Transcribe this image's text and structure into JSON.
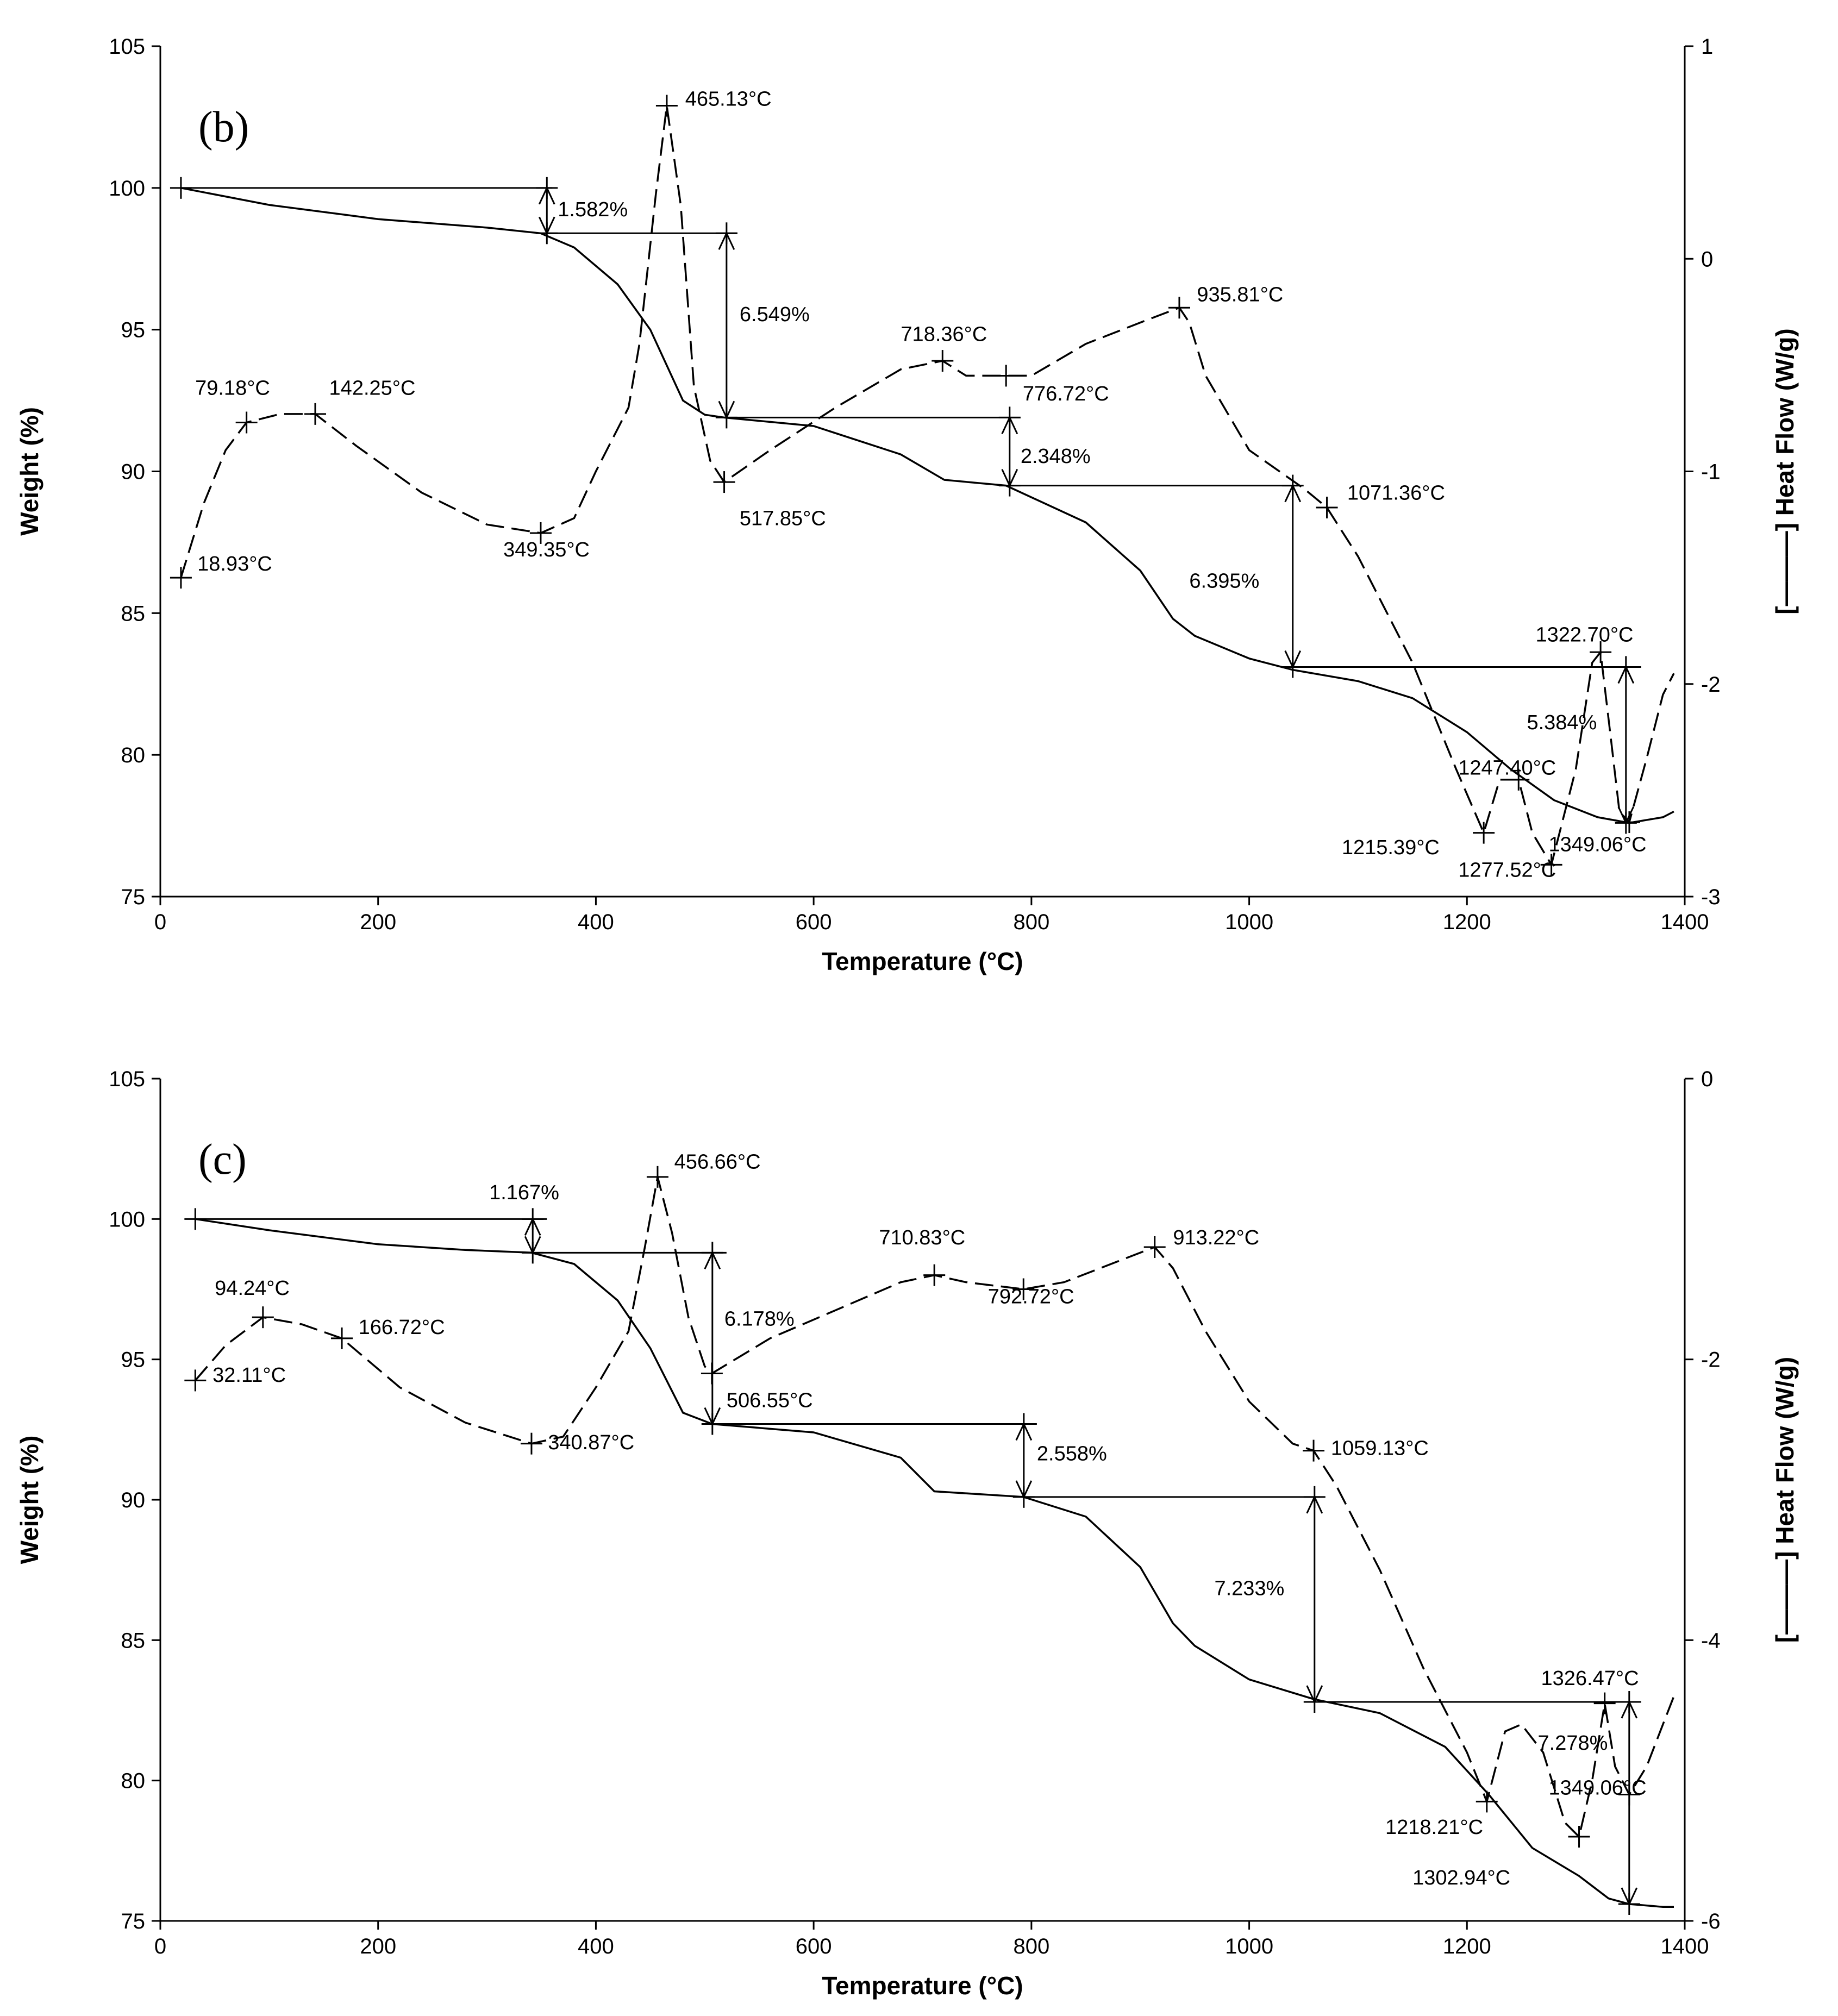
{
  "chart_data": [
    {
      "type": "line",
      "panel_label": "(b)",
      "xlabel": "Temperature (°C)",
      "ylabel": "Weight (%)",
      "y2label": "[———] Heat Flow (W/g)",
      "xlim": [
        0,
        1400
      ],
      "ylim": [
        75,
        105
      ],
      "y2lim": [
        -3,
        1
      ],
      "xticks": [
        0,
        200,
        400,
        600,
        800,
        1000,
        1200,
        1400
      ],
      "yticks": [
        75,
        80,
        85,
        90,
        95,
        100,
        105
      ],
      "y2ticks": [
        -3,
        -2,
        -1,
        0,
        1
      ],
      "series": [
        {
          "axis": "left",
          "style": "solid",
          "x": [
            18.93,
            100,
            200,
            300,
            349.35,
            380,
            420,
            450,
            480,
            500,
            517.85,
            600,
            680,
            720,
            776.72,
            850,
            900,
            930,
            950,
            1000,
            1040,
            1100,
            1150,
            1200,
            1240,
            1280,
            1320,
            1349.06,
            1380,
            1390
          ],
          "y": [
            100,
            99.4,
            98.9,
            98.6,
            98.4,
            97.9,
            96.6,
            95.0,
            92.5,
            92.0,
            91.9,
            91.6,
            90.6,
            89.7,
            89.5,
            88.2,
            86.5,
            84.8,
            84.2,
            83.4,
            83.0,
            82.6,
            82.0,
            80.8,
            79.5,
            78.4,
            77.8,
            77.6,
            77.8,
            78.0
          ]
        },
        {
          "axis": "right",
          "style": "dashed",
          "x": [
            18.93,
            40,
            60,
            79.18,
            110,
            142.25,
            180,
            240,
            300,
            349.35,
            380,
            400,
            430,
            440,
            455,
            465.13,
            478,
            490,
            505,
            517.85,
            560,
            620,
            680,
            718.36,
            740,
            776.72,
            800,
            850,
            900,
            935.81,
            945,
            960,
            1000,
            1050,
            1071.36,
            1100,
            1150,
            1190,
            1215.39,
            1230,
            1247.4,
            1260,
            1277.52,
            1300,
            1315,
            1322.7,
            1332,
            1340,
            1349.06,
            1365,
            1380,
            1390
          ],
          "y": [
            -1.5,
            -1.15,
            -0.9,
            -0.77,
            -0.73,
            -0.73,
            -0.88,
            -1.1,
            -1.25,
            -1.29,
            -1.22,
            -1.0,
            -0.7,
            -0.4,
            0.3,
            0.72,
            0.25,
            -0.6,
            -0.95,
            -1.05,
            -0.9,
            -0.7,
            -0.52,
            -0.48,
            -0.55,
            -0.55,
            -0.55,
            -0.4,
            -0.3,
            -0.23,
            -0.3,
            -0.55,
            -0.9,
            -1.08,
            -1.17,
            -1.4,
            -1.9,
            -2.4,
            -2.7,
            -2.45,
            -2.45,
            -2.7,
            -2.85,
            -2.4,
            -1.9,
            -1.85,
            -2.25,
            -2.6,
            -2.65,
            -2.35,
            -2.05,
            -1.95
          ]
        }
      ],
      "step_lines": [
        {
          "x1": 18.93,
          "x2": 360,
          "y": 100.0
        },
        {
          "x1": 349.35,
          "x2": 530,
          "y": 98.4
        },
        {
          "x1": 517.85,
          "x2": 790,
          "y": 91.9
        },
        {
          "x1": 776.72,
          "x2": 1045,
          "y": 89.5
        },
        {
          "x1": 1040,
          "x2": 1360,
          "y": 83.1
        }
      ],
      "arrows": [
        {
          "x": 355,
          "y1": 100.0,
          "y2": 98.4
        },
        {
          "x": 520,
          "y1": 98.4,
          "y2": 91.9
        },
        {
          "x": 780,
          "y1": 91.9,
          "y2": 89.5
        },
        {
          "x": 1040,
          "y1": 89.5,
          "y2": 83.1
        },
        {
          "x": 1346,
          "y1": 83.1,
          "y2": 77.6
        }
      ],
      "markers": [
        {
          "x": 18.93,
          "axis": "right",
          "v": -1.5
        },
        {
          "x": 79.18,
          "axis": "right",
          "v": -0.77
        },
        {
          "x": 142.25,
          "axis": "right",
          "v": -0.73
        },
        {
          "x": 349.35,
          "axis": "right",
          "v": -1.29
        },
        {
          "x": 465.13,
          "axis": "right",
          "v": 0.72
        },
        {
          "x": 517.85,
          "axis": "right",
          "v": -1.05
        },
        {
          "x": 718.36,
          "axis": "right",
          "v": -0.48
        },
        {
          "x": 776.72,
          "axis": "right",
          "v": -0.55
        },
        {
          "x": 935.81,
          "axis": "right",
          "v": -0.23
        },
        {
          "x": 1071.36,
          "axis": "right",
          "v": -1.17
        },
        {
          "x": 1215.39,
          "axis": "right",
          "v": -2.7
        },
        {
          "x": 1247.4,
          "axis": "right",
          "v": -2.45
        },
        {
          "x": 1277.52,
          "axis": "right",
          "v": -2.85
        },
        {
          "x": 1322.7,
          "axis": "right",
          "v": -1.85
        },
        {
          "x": 1349.06,
          "axis": "right",
          "v": -2.65
        },
        {
          "x": 18.93,
          "axis": "left",
          "v": 100.0
        },
        {
          "x": 355,
          "axis": "left",
          "v": 100.0
        },
        {
          "x": 355,
          "axis": "left",
          "v": 98.4
        },
        {
          "x": 520,
          "axis": "left",
          "v": 98.4
        },
        {
          "x": 520,
          "axis": "left",
          "v": 91.9
        },
        {
          "x": 780,
          "axis": "left",
          "v": 91.9
        },
        {
          "x": 780,
          "axis": "left",
          "v": 89.5
        },
        {
          "x": 1040,
          "axis": "left",
          "v": 89.5
        },
        {
          "x": 1040,
          "axis": "left",
          "v": 83.1
        },
        {
          "x": 1346,
          "axis": "left",
          "v": 83.1
        },
        {
          "x": 1346,
          "axis": "left",
          "v": 77.6
        }
      ],
      "annotations": [
        {
          "text": "465.13°C",
          "x": 482,
          "axis": "right",
          "v": 0.72,
          "anchor": "start"
        },
        {
          "text": "1.582%",
          "x": 365,
          "axis": "left",
          "v": 99.0,
          "anchor": "start"
        },
        {
          "text": "6.549%",
          "x": 532,
          "axis": "left",
          "v": 95.3,
          "anchor": "start"
        },
        {
          "text": "718.36°C",
          "x": 680,
          "axis": "left",
          "v": 94.6,
          "anchor": "start"
        },
        {
          "text": "935.81°C",
          "x": 952,
          "axis": "left",
          "v": 96.0,
          "anchor": "start"
        },
        {
          "text": "79.18°C",
          "x": 32,
          "axis": "left",
          "v": 92.7,
          "anchor": "start"
        },
        {
          "text": "142.25°C",
          "x": 155,
          "axis": "left",
          "v": 92.7,
          "anchor": "start"
        },
        {
          "text": "776.72°C",
          "x": 792,
          "axis": "left",
          "v": 92.5,
          "anchor": "start"
        },
        {
          "text": "2.348%",
          "x": 790,
          "axis": "left",
          "v": 90.3,
          "anchor": "start"
        },
        {
          "text": "517.85°C",
          "x": 532,
          "axis": "left",
          "v": 88.1,
          "anchor": "start"
        },
        {
          "text": "1071.36°C",
          "x": 1090,
          "axis": "left",
          "v": 89.0,
          "anchor": "start"
        },
        {
          "text": "18.93°C",
          "x": 34,
          "axis": "left",
          "v": 86.5,
          "anchor": "start"
        },
        {
          "text": "349.35°C",
          "x": 315,
          "axis": "left",
          "v": 87.0,
          "anchor": "start"
        },
        {
          "text": "6.395%",
          "x": 945,
          "axis": "left",
          "v": 85.9,
          "anchor": "start"
        },
        {
          "text": "1322.70°C",
          "x": 1263,
          "axis": "left",
          "v": 84.0,
          "anchor": "start"
        },
        {
          "text": "5.384%",
          "x": 1255,
          "axis": "left",
          "v": 80.9,
          "anchor": "start"
        },
        {
          "text": "1247.40°C",
          "x": 1192,
          "axis": "left",
          "v": 79.3,
          "anchor": "start"
        },
        {
          "text": "1215.39°C",
          "x": 1085,
          "axis": "left",
          "v": 76.5,
          "anchor": "start"
        },
        {
          "text": "1349.06°C",
          "x": 1275,
          "axis": "left",
          "v": 76.6,
          "anchor": "start"
        },
        {
          "text": "1277.52°C",
          "x": 1192,
          "axis": "left",
          "v": 75.7,
          "anchor": "start"
        }
      ]
    },
    {
      "type": "line",
      "panel_label": "(c)",
      "xlabel": "Temperature (°C)",
      "ylabel": "Weight (%)",
      "y2label": "[———] Heat Flow (W/g)",
      "xlim": [
        0,
        1400
      ],
      "ylim": [
        75,
        105
      ],
      "y2lim": [
        -6,
        0
      ],
      "xticks": [
        0,
        200,
        400,
        600,
        800,
        1000,
        1200,
        1400
      ],
      "yticks": [
        75,
        80,
        85,
        90,
        95,
        100,
        105
      ],
      "y2ticks": [
        -6,
        -4,
        -2,
        0
      ],
      "series": [
        {
          "axis": "left",
          "style": "solid",
          "x": [
            32.11,
            100,
            200,
            280,
            340.87,
            380,
            420,
            450,
            480,
            500,
            506.55,
            600,
            680,
            710.83,
            792.72,
            850,
            900,
            930,
            950,
            1000,
            1059.13,
            1120,
            1180,
            1220,
            1260,
            1302.94,
            1330,
            1349.06,
            1380,
            1390
          ],
          "y": [
            100,
            99.6,
            99.1,
            98.9,
            98.8,
            98.4,
            97.1,
            95.4,
            93.1,
            92.8,
            92.7,
            92.4,
            91.5,
            90.3,
            90.1,
            89.4,
            87.6,
            85.6,
            84.8,
            83.6,
            82.9,
            82.4,
            81.2,
            79.5,
            77.6,
            76.6,
            75.8,
            75.6,
            75.5,
            75.5
          ]
        },
        {
          "axis": "right",
          "style": "dashed",
          "x": [
            32.11,
            60,
            94.24,
            130,
            166.72,
            220,
            280,
            340.87,
            370,
            400,
            430,
            445,
            456.66,
            470,
            485,
            500,
            506.55,
            560,
            620,
            680,
            710.83,
            740,
            792.72,
            830,
            880,
            913.22,
            930,
            960,
            1000,
            1040,
            1059.13,
            1080,
            1120,
            1160,
            1200,
            1218.21,
            1235,
            1250,
            1270,
            1290,
            1302.94,
            1315,
            1326.47,
            1336,
            1349.06,
            1365,
            1380,
            1390
          ],
          "y": [
            -2.15,
            -1.9,
            -1.7,
            -1.75,
            -1.85,
            -2.2,
            -2.45,
            -2.6,
            -2.55,
            -2.2,
            -1.8,
            -1.2,
            -0.7,
            -1.1,
            -1.7,
            -2.05,
            -2.1,
            -1.85,
            -1.65,
            -1.45,
            -1.4,
            -1.45,
            -1.5,
            -1.45,
            -1.3,
            -1.2,
            -1.35,
            -1.8,
            -2.3,
            -2.6,
            -2.65,
            -2.9,
            -3.5,
            -4.2,
            -4.8,
            -5.15,
            -4.65,
            -4.6,
            -4.8,
            -5.3,
            -5.4,
            -5.0,
            -4.45,
            -4.9,
            -5.1,
            -4.9,
            -4.6,
            -4.4
          ]
        }
      ],
      "step_lines": [
        {
          "x1": 32.11,
          "x2": 355,
          "y": 100.0
        },
        {
          "x1": 340.87,
          "x2": 520,
          "y": 98.8
        },
        {
          "x1": 506.55,
          "x2": 805,
          "y": 92.7
        },
        {
          "x1": 792.72,
          "x2": 1065,
          "y": 90.1
        },
        {
          "x1": 1059.13,
          "x2": 1360,
          "y": 82.8
        }
      ],
      "arrows": [
        {
          "x": 342,
          "y1": 100.0,
          "y2": 98.8
        },
        {
          "x": 507,
          "y1": 98.8,
          "y2": 92.7
        },
        {
          "x": 793,
          "y1": 92.7,
          "y2": 90.1
        },
        {
          "x": 1060,
          "y1": 90.1,
          "y2": 82.8
        },
        {
          "x": 1349,
          "y1": 82.8,
          "y2": 75.6
        }
      ],
      "markers": [
        {
          "x": 32.11,
          "axis": "right",
          "v": -2.15
        },
        {
          "x": 94.24,
          "axis": "right",
          "v": -1.7
        },
        {
          "x": 166.72,
          "axis": "right",
          "v": -1.85
        },
        {
          "x": 340.87,
          "axis": "right",
          "v": -2.6
        },
        {
          "x": 456.66,
          "axis": "right",
          "v": -0.7
        },
        {
          "x": 506.55,
          "axis": "right",
          "v": -2.1
        },
        {
          "x": 710.83,
          "axis": "right",
          "v": -1.4
        },
        {
          "x": 792.72,
          "axis": "right",
          "v": -1.5
        },
        {
          "x": 913.22,
          "axis": "right",
          "v": -1.2
        },
        {
          "x": 1059.13,
          "axis": "right",
          "v": -2.65
        },
        {
          "x": 1218.21,
          "axis": "right",
          "v": -5.15
        },
        {
          "x": 1302.94,
          "axis": "right",
          "v": -5.4
        },
        {
          "x": 1326.47,
          "axis": "right",
          "v": -4.45
        },
        {
          "x": 1349.06,
          "axis": "right",
          "v": -5.1
        },
        {
          "x": 32.11,
          "axis": "left",
          "v": 100.0
        },
        {
          "x": 342,
          "axis": "left",
          "v": 100.0
        },
        {
          "x": 342,
          "axis": "left",
          "v": 98.8
        },
        {
          "x": 507,
          "axis": "left",
          "v": 98.8
        },
        {
          "x": 507,
          "axis": "left",
          "v": 92.7
        },
        {
          "x": 793,
          "axis": "left",
          "v": 92.7
        },
        {
          "x": 793,
          "axis": "left",
          "v": 90.1
        },
        {
          "x": 1060,
          "axis": "left",
          "v": 90.1
        },
        {
          "x": 1060,
          "axis": "left",
          "v": 82.8
        },
        {
          "x": 1349,
          "axis": "left",
          "v": 82.8
        },
        {
          "x": 1349,
          "axis": "left",
          "v": 75.6
        }
      ],
      "annotations": [
        {
          "text": "1.167%",
          "x": 302,
          "axis": "left",
          "v": 100.7,
          "anchor": "start"
        },
        {
          "text": "456.66°C",
          "x": 472,
          "axis": "left",
          "v": 101.8,
          "anchor": "start"
        },
        {
          "text": "710.83°C",
          "x": 660,
          "axis": "left",
          "v": 99.1,
          "anchor": "start"
        },
        {
          "text": "913.22°C",
          "x": 930,
          "axis": "left",
          "v": 99.1,
          "anchor": "start"
        },
        {
          "text": "94.24°C",
          "x": 50,
          "axis": "left",
          "v": 97.3,
          "anchor": "start"
        },
        {
          "text": "166.72°C",
          "x": 182,
          "axis": "left",
          "v": 95.9,
          "anchor": "start"
        },
        {
          "text": "792.72°C",
          "x": 760,
          "axis": "left",
          "v": 97.0,
          "anchor": "start"
        },
        {
          "text": "6.178%",
          "x": 518,
          "axis": "left",
          "v": 96.2,
          "anchor": "start"
        },
        {
          "text": "32.11°C",
          "x": 48,
          "axis": "left",
          "v": 94.2,
          "anchor": "start"
        },
        {
          "text": "506.55°C",
          "x": 520,
          "axis": "left",
          "v": 93.3,
          "anchor": "start"
        },
        {
          "text": "340.87°C",
          "x": 356,
          "axis": "left",
          "v": 91.8,
          "anchor": "start"
        },
        {
          "text": "2.558%",
          "x": 805,
          "axis": "left",
          "v": 91.4,
          "anchor": "start"
        },
        {
          "text": "1059.13°C",
          "x": 1075,
          "axis": "left",
          "v": 91.6,
          "anchor": "start"
        },
        {
          "text": "7.233%",
          "x": 968,
          "axis": "left",
          "v": 86.6,
          "anchor": "start"
        },
        {
          "text": "1326.47°C",
          "x": 1268,
          "axis": "left",
          "v": 83.4,
          "anchor": "start"
        },
        {
          "text": "7.278%",
          "x": 1265,
          "axis": "left",
          "v": 81.1,
          "anchor": "start"
        },
        {
          "text": "1349.06°C",
          "x": 1275,
          "axis": "left",
          "v": 79.5,
          "anchor": "start"
        },
        {
          "text": "1218.21°C",
          "x": 1125,
          "axis": "left",
          "v": 78.1,
          "anchor": "start"
        },
        {
          "text": "1302.94°C",
          "x": 1150,
          "axis": "left",
          "v": 76.3,
          "anchor": "start"
        }
      ]
    }
  ]
}
